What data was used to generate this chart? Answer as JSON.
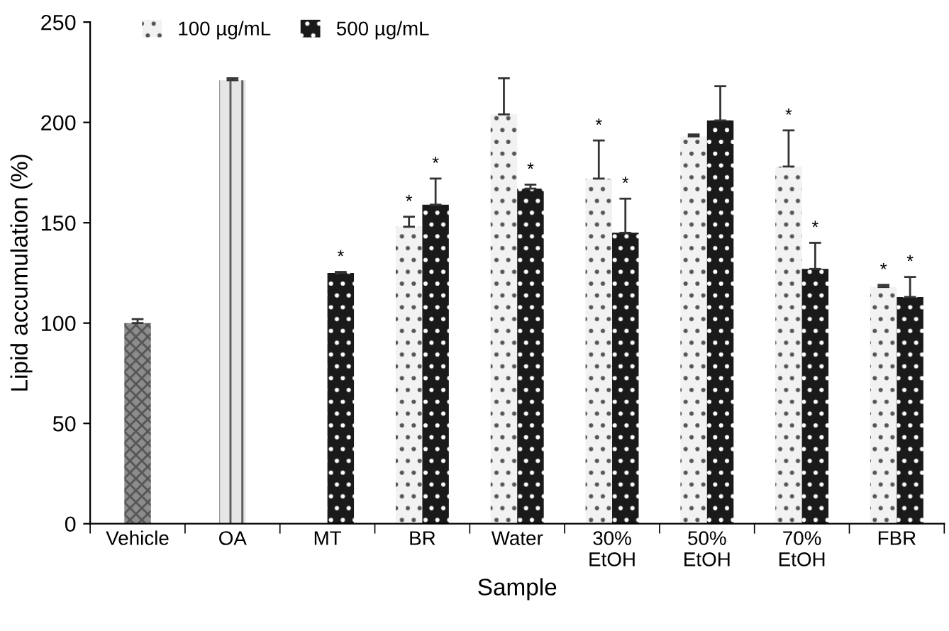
{
  "chart_data": {
    "type": "bar",
    "xlabel": "Sample",
    "ylabel": "Lipid accumulation (%)",
    "categories": [
      "Vehicle",
      "OA",
      "MT",
      "BR",
      "Water",
      "30%\nEtOH",
      "50%\nEtOH",
      "70%\nEtOH",
      "FBR"
    ],
    "series": [
      {
        "color": "#8c8c8c",
        "values": [
          100,
          null,
          null,
          null,
          null,
          null,
          null,
          null,
          null
        ],
        "errors": [
          2,
          null,
          null,
          null,
          null,
          null,
          null,
          null,
          null
        ]
      },
      {
        "color": "#e6e6e6",
        "values": [
          null,
          221,
          null,
          null,
          null,
          null,
          null,
          null,
          null
        ],
        "errors": [
          null,
          1,
          null,
          null,
          null,
          null,
          null,
          null,
          null
        ]
      },
      {
        "name": "100 µg/mL",
        "color": "#f2f2f2",
        "values": [
          null,
          null,
          null,
          148,
          204,
          172,
          193,
          178,
          118
        ],
        "errors": [
          null,
          null,
          null,
          5,
          18,
          19,
          1,
          18,
          1
        ],
        "value_labels": [
          null,
          null,
          null,
          "*",
          null,
          "*",
          null,
          "*",
          "*"
        ]
      },
      {
        "name": "500 µg/mL",
        "color": "#1a1a1a",
        "values": [
          null,
          null,
          125,
          159,
          167,
          145,
          201,
          127,
          113
        ],
        "errors": [
          null,
          null,
          0.5,
          13,
          2,
          17,
          17,
          13,
          10
        ],
        "value_labels": [
          null,
          null,
          "*",
          "*",
          "*",
          "*",
          null,
          "*",
          "*"
        ]
      }
    ],
    "ylim": [
      0,
      250
    ],
    "yticks": [
      0,
      50,
      100,
      150,
      200,
      250
    ],
    "grid": false,
    "legend": "top left"
  }
}
